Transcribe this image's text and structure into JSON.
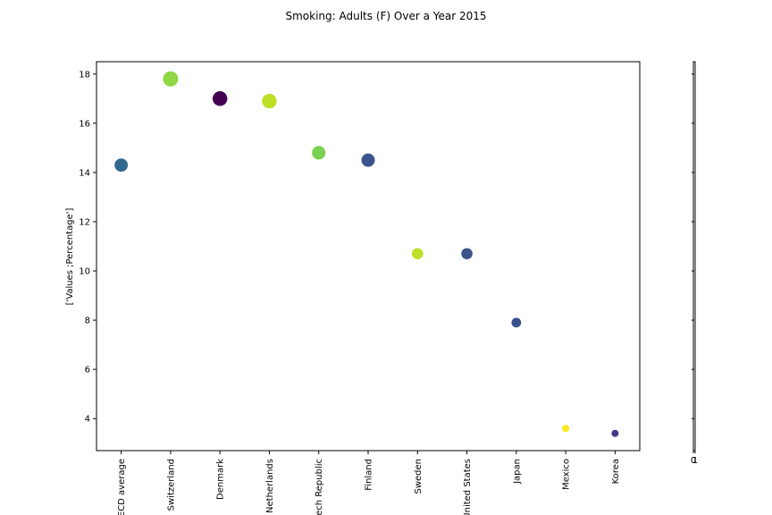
{
  "chart_data": {
    "type": "scatter",
    "title": "Smoking: Adults (F) Over a Year 2015",
    "ylabel": "['Values ;Percentage']",
    "xlabel": "",
    "categories": [
      "OECD average",
      "Switzerland",
      "Denmark",
      "Netherlands",
      "Czech Republic",
      "Finland",
      "Sweden",
      "United States",
      "Japan",
      "Mexico",
      "Korea"
    ],
    "values": [
      14.3,
      17.8,
      17.0,
      16.9,
      14.8,
      14.5,
      10.7,
      10.7,
      7.9,
      3.6,
      3.4
    ],
    "colors": [
      "#31688e",
      "#8fd744",
      "#440154",
      "#bddf26",
      "#7ad151",
      "#3b528b",
      "#bddf26",
      "#3b528b",
      "#3b528b",
      "#fde725",
      "#443983"
    ],
    "yticks": [
      "4",
      "6",
      "8",
      "10",
      "12",
      "14",
      "16",
      "18"
    ],
    "ylim": [
      2.7,
      18.5
    ],
    "grid": false,
    "colorbar_ticks": [
      "0",
      "1"
    ]
  }
}
